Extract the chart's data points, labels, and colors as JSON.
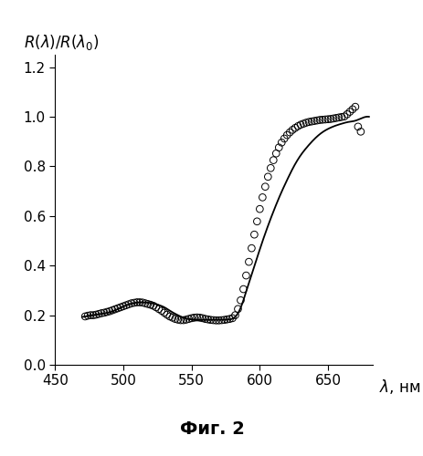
{
  "ylabel": "R(λ)/R(λ_0)",
  "xlabel": "λ, нм",
  "fig_caption": "Фиг. 2",
  "xlim": [
    458,
    683
  ],
  "ylim": [
    0,
    1.25
  ],
  "yticks": [
    0.0,
    0.2,
    0.4,
    0.6,
    0.8,
    1.0,
    1.2
  ],
  "xticks": [
    450,
    500,
    550,
    600,
    650
  ],
  "scatter_x": [
    472,
    474,
    476,
    478,
    480,
    482,
    484,
    486,
    488,
    490,
    492,
    494,
    496,
    498,
    500,
    502,
    504,
    506,
    508,
    510,
    512,
    514,
    516,
    518,
    520,
    522,
    524,
    526,
    528,
    530,
    532,
    534,
    536,
    538,
    540,
    542,
    544,
    546,
    548,
    550,
    552,
    554,
    556,
    558,
    560,
    562,
    564,
    566,
    568,
    570,
    572,
    574,
    576,
    578,
    580,
    582,
    584,
    586,
    588,
    590,
    592,
    594,
    596,
    598,
    600,
    602,
    604,
    606,
    608,
    610,
    612,
    614,
    616,
    618,
    620,
    622,
    624,
    626,
    628,
    630,
    632,
    634,
    636,
    638,
    640,
    642,
    644,
    646,
    648,
    650,
    652,
    654,
    656,
    658,
    660,
    662,
    664,
    666,
    668,
    670,
    672,
    674
  ],
  "scatter_y": [
    0.195,
    0.198,
    0.2,
    0.2,
    0.202,
    0.205,
    0.208,
    0.21,
    0.213,
    0.216,
    0.22,
    0.224,
    0.228,
    0.232,
    0.236,
    0.24,
    0.244,
    0.248,
    0.25,
    0.252,
    0.252,
    0.251,
    0.248,
    0.245,
    0.242,
    0.238,
    0.232,
    0.225,
    0.218,
    0.21,
    0.202,
    0.195,
    0.19,
    0.185,
    0.182,
    0.18,
    0.18,
    0.182,
    0.185,
    0.188,
    0.19,
    0.191,
    0.19,
    0.188,
    0.185,
    0.183,
    0.181,
    0.18,
    0.179,
    0.179,
    0.18,
    0.181,
    0.183,
    0.185,
    0.188,
    0.2,
    0.225,
    0.26,
    0.305,
    0.36,
    0.415,
    0.47,
    0.525,
    0.578,
    0.628,
    0.675,
    0.718,
    0.758,
    0.793,
    0.825,
    0.852,
    0.876,
    0.896,
    0.912,
    0.926,
    0.937,
    0.947,
    0.955,
    0.962,
    0.968,
    0.972,
    0.976,
    0.979,
    0.981,
    0.983,
    0.985,
    0.987,
    0.988,
    0.989,
    0.99,
    0.991,
    0.993,
    0.995,
    0.997,
    0.999,
    1.001,
    1.01,
    1.02,
    1.03,
    1.04,
    0.96,
    0.94
  ],
  "background_color": "#ffffff",
  "line_color": "#000000",
  "scatter_color": "#000000",
  "marker_size": 5.5
}
